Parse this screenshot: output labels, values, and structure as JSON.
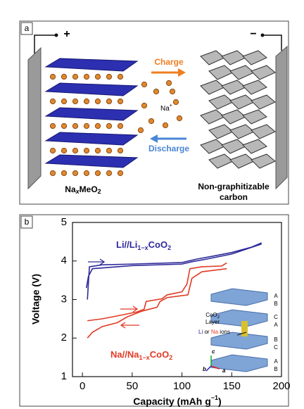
{
  "panel_a": {
    "label": "a",
    "plus": "+",
    "minus": "−",
    "charge": "Charge",
    "discharge": "Discharge",
    "ion": [
      "Na",
      "+"
    ],
    "cathode": [
      "Na",
      "x",
      "MeO",
      "2"
    ],
    "anode": [
      "Non-graphitizable",
      "carbon"
    ]
  },
  "chart_data": {
    "type": "line",
    "panel_label": "b",
    "x_label": [
      "Capacity (mAh g",
      "−1",
      ")"
    ],
    "y_label": "Voltage (V)",
    "xlim": [
      -10,
      200
    ],
    "ylim": [
      1,
      5
    ],
    "xticks": [
      0,
      50,
      100,
      150,
      200
    ],
    "yticks": [
      1,
      2,
      3,
      4,
      5
    ],
    "series": [
      {
        "color": "#2e2a9a",
        "x": [
          5,
          7,
          20,
          50,
          100,
          115,
          130,
          150,
          170,
          180
        ],
        "values": [
          3.0,
          3.85,
          3.9,
          3.92,
          3.96,
          4.05,
          4.12,
          4.22,
          4.36,
          4.47
        ]
      },
      {
        "color": "#2e2a9a",
        "x": [
          180,
          150,
          125,
          110,
          100,
          50,
          10,
          6,
          4
        ],
        "values": [
          4.44,
          4.18,
          4.05,
          3.98,
          3.92,
          3.88,
          3.8,
          3.6,
          3.3
        ]
      },
      {
        "color": "#e03a24",
        "x": [
          5,
          20,
          40,
          55,
          62,
          64,
          80,
          85,
          100,
          105,
          108,
          120,
          140,
          145
        ],
        "values": [
          2.45,
          2.5,
          2.6,
          2.68,
          2.75,
          2.95,
          3.02,
          3.12,
          3.2,
          3.4,
          3.8,
          3.85,
          3.87,
          3.95
        ]
      },
      {
        "color": "#e03a24",
        "x": [
          145,
          120,
          110,
          106,
          85,
          78,
          75,
          60,
          45,
          35,
          20,
          10,
          5
        ],
        "values": [
          3.8,
          3.72,
          3.55,
          3.12,
          3.05,
          2.95,
          2.8,
          2.7,
          2.55,
          2.4,
          2.3,
          2.15,
          2.0
        ]
      }
    ],
    "annotations": [
      [
        "Li//Li",
        "1−x",
        "CoO",
        "2"
      ],
      [
        "Na//Na",
        "1−x",
        "CoO",
        "2"
      ]
    ],
    "inset": {
      "layer": [
        "CoO",
        "2",
        "Layer"
      ],
      "ions": [
        "Li",
        "or",
        "Na",
        "ions"
      ],
      "stacking": [
        "A",
        "B",
        "C",
        "A",
        "B",
        "C",
        "A",
        "B"
      ],
      "axes": [
        "c",
        "b",
        "a"
      ]
    }
  }
}
